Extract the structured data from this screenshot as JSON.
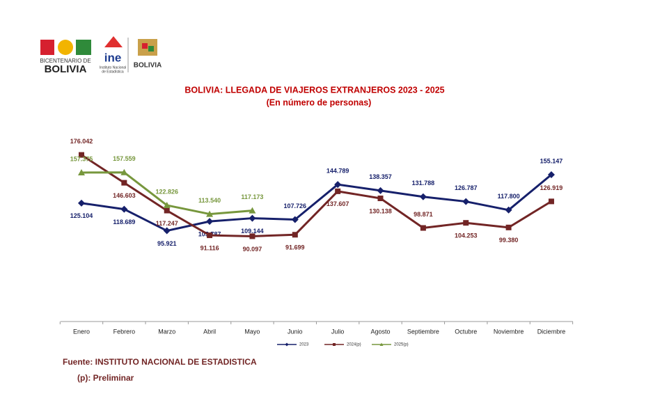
{
  "logos": {
    "bicentenario": [
      "BICENTENARIO DE",
      "BOLIVIA"
    ],
    "ine": [
      "ine",
      "Instituto Nacional",
      "de Estadística"
    ],
    "ministerio": "BOLIVIA"
  },
  "chart_data": {
    "type": "line",
    "title": "BOLIVIA: LLEGADA DE VIAJEROS EXTRANJEROS 2023 - 2025",
    "subtitle": "(En número de personas)",
    "categories": [
      "Enero",
      "Febrero",
      "Marzo",
      "Abril",
      "Mayo",
      "Junio",
      "Julio",
      "Agosto",
      "Septiembre",
      "Octubre",
      "Noviembre",
      "Diciembre"
    ],
    "ylim": [
      0,
      200000
    ],
    "series": [
      {
        "name": "2023",
        "color": "#16206b",
        "marker": "diamond",
        "values": [
          125104,
          118689,
          95921,
          105787,
          109144,
          107726,
          144789,
          138357,
          131788,
          126787,
          117800,
          155147
        ],
        "value_labels": [
          "125.104",
          "118.689",
          "95.921",
          "105.787",
          "109.144",
          "107.726",
          "144.789",
          "138.357",
          "131.788",
          "126.787",
          "117.800",
          "155.147"
        ]
      },
      {
        "name": "2024(p)",
        "color": "#722525",
        "marker": "square",
        "values": [
          176042,
          146603,
          117247,
          91116,
          90097,
          91699,
          137607,
          130138,
          98871,
          104253,
          99380,
          126919
        ],
        "value_labels": [
          "176.042",
          "146.603",
          "117.247",
          "91.116",
          "90.097",
          "91.699",
          "137.607",
          "130.138",
          "98.871",
          "104.253",
          "99.380",
          "126.919"
        ]
      },
      {
        "name": "2025(p)",
        "color": "#77973d",
        "marker": "triangle",
        "values": [
          157375,
          157559,
          122826,
          113540,
          117173,
          null,
          null,
          null,
          null,
          null,
          null,
          null
        ],
        "value_labels": [
          "157.375",
          "157.559",
          "122.826",
          "113.540",
          "117.173",
          null,
          null,
          null,
          null,
          null,
          null,
          null
        ]
      }
    ],
    "legend": "bottom",
    "source": "Fuente: INSTITUTO NACIONAL DE ESTADISTICA",
    "note": "(p): Preliminar"
  }
}
